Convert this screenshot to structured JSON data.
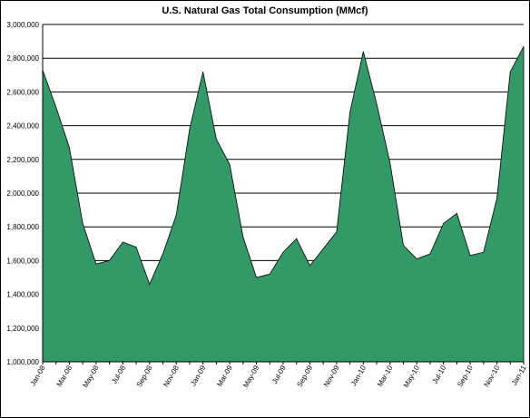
{
  "chart_data": {
    "type": "area",
    "title": "U.S. Natural Gas Total Consumption (MMcf)",
    "xlabel": "",
    "ylabel": "",
    "ylim": [
      1000000,
      3000000
    ],
    "yticks": [
      1000000,
      1200000,
      1400000,
      1600000,
      1800000,
      2000000,
      2200000,
      2400000,
      2600000,
      2800000,
      3000000
    ],
    "ytick_labels": [
      "1,000,000",
      "1,200,000",
      "1,400,000",
      "1,600,000",
      "1,800,000",
      "2,000,000",
      "2,200,000",
      "2,400,000",
      "2,600,000",
      "2,800,000",
      "3,000,000"
    ],
    "x": [
      "Jan-08",
      "Feb-08",
      "Mar-08",
      "Apr-08",
      "May-08",
      "Jun-08",
      "Jul-08",
      "Aug-08",
      "Sep-08",
      "Oct-08",
      "Nov-08",
      "Dec-08",
      "Jan-09",
      "Feb-09",
      "Mar-09",
      "Apr-09",
      "May-09",
      "Jun-09",
      "Jul-09",
      "Aug-09",
      "Sep-09",
      "Oct-09",
      "Nov-09",
      "Dec-09",
      "Jan-10",
      "Feb-10",
      "Mar-10",
      "Apr-10",
      "May-10",
      "Jun-10",
      "Jul-10",
      "Aug-10",
      "Sep-10",
      "Oct-10",
      "Nov-10",
      "Dec-10",
      "Jan-11"
    ],
    "xtick_labels": [
      "Jan-08",
      "Mar-08",
      "May-08",
      "Jul-08",
      "Sep-08",
      "Nov-08",
      "Jan-09",
      "Mar-09",
      "May-09",
      "Jul-09",
      "Sep-09",
      "Nov-09",
      "Jan-10",
      "Mar-10",
      "May-10",
      "Jul-10",
      "Sep-10",
      "Nov-10",
      "Jan-11"
    ],
    "series": [
      {
        "name": "",
        "values": [
          2730000,
          2510000,
          2270000,
          1820000,
          1580000,
          1600000,
          1710000,
          1680000,
          1460000,
          1640000,
          1870000,
          2380000,
          2720000,
          2320000,
          2170000,
          1740000,
          1500000,
          1520000,
          1650000,
          1730000,
          1570000,
          1670000,
          1770000,
          2480000,
          2840000,
          2530000,
          2180000,
          1690000,
          1610000,
          1640000,
          1820000,
          1880000,
          1630000,
          1650000,
          1970000,
          2720000,
          2870000
        ]
      }
    ],
    "colors": {
      "fill": "#339966",
      "stroke": "#000000",
      "grid": "#000000",
      "background": "#ffffff"
    },
    "grid": true,
    "legend": "none"
  }
}
